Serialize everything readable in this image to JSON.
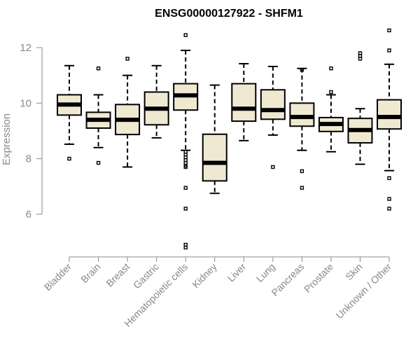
{
  "chart_data": {
    "type": "box",
    "title": "ENSG00000127922 - SHFM1",
    "xlabel": "",
    "ylabel": "Expression",
    "ylim": [
      4.7,
      12.8
    ],
    "yticks": [
      6,
      8,
      10,
      12
    ],
    "grid": false,
    "colors": {
      "box_fill": "#efe9d2",
      "box_stroke": "#000000",
      "axis": "#888888",
      "title": "#000000"
    },
    "categories": [
      "Bladder",
      "Brain",
      "Breast",
      "Gastric",
      "Hematopoietic cells",
      "Kidney",
      "Liver",
      "Lung",
      "Pancreas",
      "Prostate",
      "Skin",
      "Unknown / Other"
    ],
    "boxes": [
      {
        "name": "Bladder",
        "whisker_low": 8.52,
        "q1": 9.57,
        "median": 9.95,
        "q3": 10.3,
        "whisker_high": 11.35,
        "outliers": [
          8.0
        ]
      },
      {
        "name": "Brain",
        "whisker_low": 8.4,
        "q1": 9.1,
        "median": 9.4,
        "q3": 9.67,
        "whisker_high": 10.3,
        "outliers": [
          11.25,
          7.85
        ]
      },
      {
        "name": "Breast",
        "whisker_low": 7.7,
        "q1": 8.87,
        "median": 9.4,
        "q3": 9.95,
        "whisker_high": 11.0,
        "outliers": [
          11.6
        ]
      },
      {
        "name": "Gastric",
        "whisker_low": 8.75,
        "q1": 9.22,
        "median": 9.8,
        "q3": 10.4,
        "whisker_high": 11.35,
        "outliers": []
      },
      {
        "name": "Hematopoietic cells",
        "whisker_low": 8.3,
        "q1": 9.75,
        "median": 10.28,
        "q3": 10.7,
        "whisker_high": 11.9,
        "outliers": [
          12.45,
          8.25,
          8.15,
          8.05,
          7.95,
          7.85,
          7.75,
          7.7,
          6.95,
          6.2,
          4.9,
          4.8
        ]
      },
      {
        "name": "Kidney",
        "whisker_low": 6.75,
        "q1": 7.2,
        "median": 7.85,
        "q3": 8.88,
        "whisker_high": 10.65,
        "outliers": []
      },
      {
        "name": "Liver",
        "whisker_low": 8.65,
        "q1": 9.35,
        "median": 9.8,
        "q3": 10.7,
        "whisker_high": 11.42,
        "outliers": []
      },
      {
        "name": "Lung",
        "whisker_low": 8.85,
        "q1": 9.42,
        "median": 9.75,
        "q3": 10.48,
        "whisker_high": 11.32,
        "outliers": [
          7.7
        ]
      },
      {
        "name": "Pancreas",
        "whisker_low": 8.3,
        "q1": 9.17,
        "median": 9.5,
        "q3": 10.0,
        "whisker_high": 11.25,
        "outliers": [
          11.2,
          7.55,
          6.95
        ]
      },
      {
        "name": "Prostate",
        "whisker_low": 8.25,
        "q1": 8.98,
        "median": 9.25,
        "q3": 9.48,
        "whisker_high": 10.3,
        "outliers": [
          11.25,
          10.4
        ]
      },
      {
        "name": "Skin",
        "whisker_low": 7.8,
        "q1": 8.57,
        "median": 9.03,
        "q3": 9.45,
        "whisker_high": 9.8,
        "outliers": [
          11.8,
          11.7,
          11.6
        ]
      },
      {
        "name": "Unknown / Other",
        "whisker_low": 7.57,
        "q1": 9.07,
        "median": 9.5,
        "q3": 10.12,
        "whisker_high": 11.4,
        "outliers": [
          12.62,
          11.9,
          7.3,
          6.55,
          6.2
        ]
      }
    ]
  }
}
